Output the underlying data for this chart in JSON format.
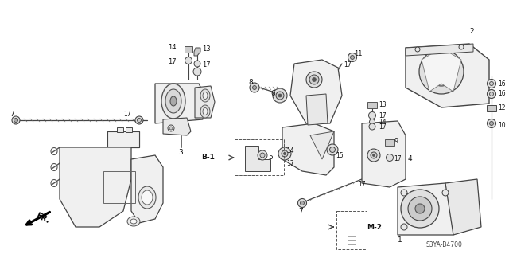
{
  "bg_color": "#ffffff",
  "line_color": "#444444",
  "text_color": "#111111",
  "fig_width": 6.4,
  "fig_height": 3.19,
  "diagram_code": "S3YA-B4700"
}
